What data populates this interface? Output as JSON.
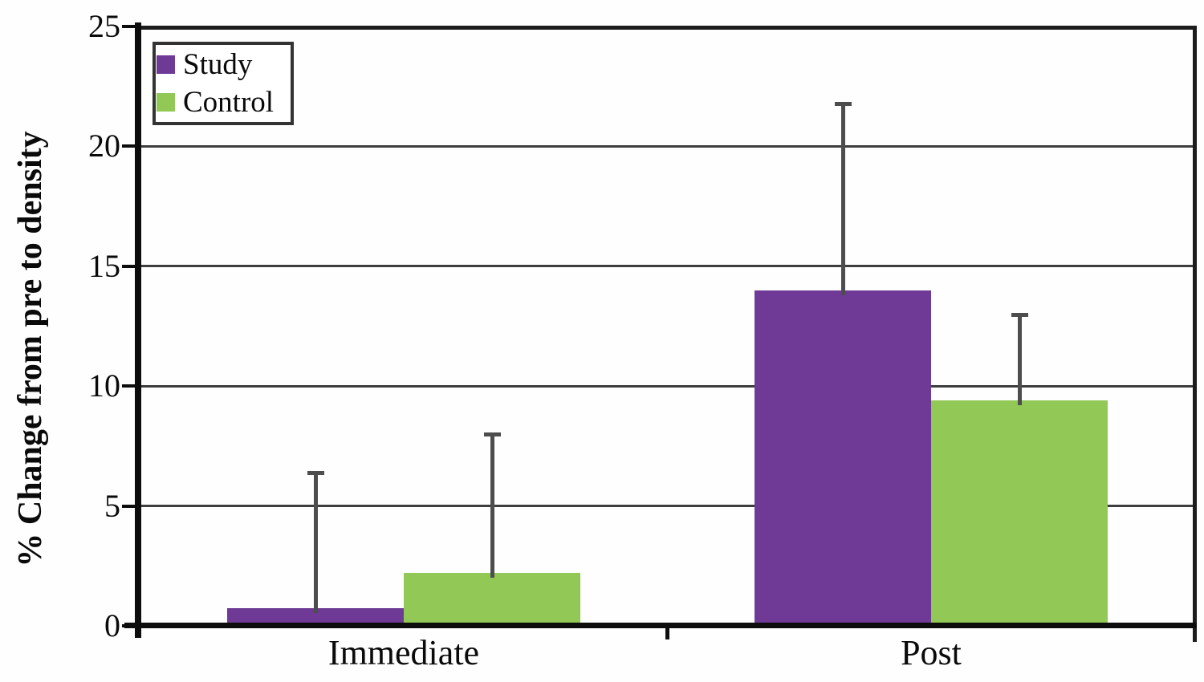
{
  "chart_data": {
    "type": "bar",
    "title": "",
    "xlabel": "",
    "ylabel": "% Change from pre to density",
    "categories": [
      "Immediate",
      "Post"
    ],
    "series": [
      {
        "name": "Study",
        "color": "#6e3a96",
        "values": [
          0.75,
          14.0
        ],
        "error_up": [
          6.4,
          21.8
        ]
      },
      {
        "name": "Control",
        "color": "#92c956",
        "values": [
          2.2,
          9.4
        ],
        "error_up": [
          8.0,
          13.0
        ]
      }
    ],
    "ylim": [
      0,
      25
    ],
    "yticks": [
      0,
      5,
      10,
      15,
      20,
      25
    ],
    "grid": "horizontal",
    "legend_position": "top-left",
    "error_bar_color": "#4d4d4d",
    "axis_color": "#0d0d0d"
  }
}
